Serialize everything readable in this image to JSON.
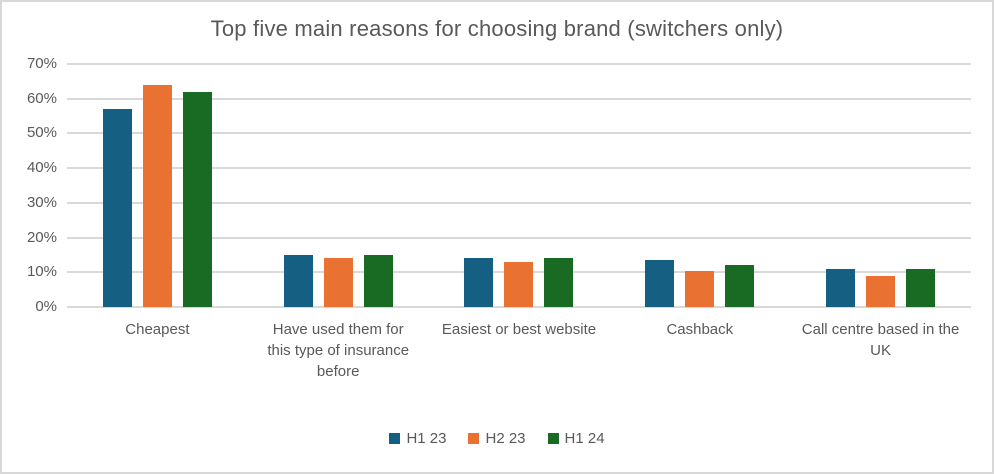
{
  "chart_data": {
    "type": "bar",
    "title": "Top five main reasons for choosing brand (switchers only)",
    "categories": [
      "Cheapest",
      "Have used them for this type of insurance before",
      "Easiest or best website",
      "Cashback",
      "Call centre based in the UK"
    ],
    "series": [
      {
        "name": "H1 23",
        "color": "#156082",
        "values": [
          57,
          15,
          14,
          13.5,
          11
        ]
      },
      {
        "name": "H2 23",
        "color": "#E97132",
        "values": [
          64,
          14,
          13,
          10.5,
          9
        ]
      },
      {
        "name": "H1 24",
        "color": "#196B24",
        "values": [
          62,
          15,
          14,
          12,
          11
        ]
      }
    ],
    "ylim": [
      0,
      70
    ],
    "ytick_step": 10,
    "ytick_labels": [
      "0%",
      "10%",
      "20%",
      "30%",
      "40%",
      "50%",
      "60%",
      "70%"
    ],
    "grid": true,
    "legend_position": "bottom"
  },
  "colors": {
    "text": "#595959",
    "gridline": "#D9D9D9",
    "border": "#D8D8D8",
    "background": "#FFFFFF"
  }
}
